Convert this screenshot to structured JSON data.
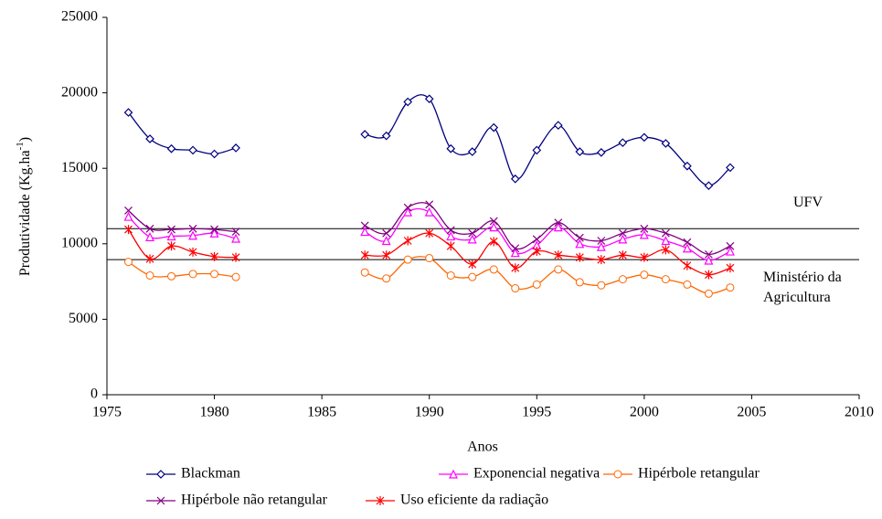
{
  "chart_data": {
    "type": "line",
    "xlabel": "Anos",
    "ylabel": {
      "text": "Produtividade (Kg.ha",
      "sup": "-1",
      "end": ")"
    },
    "x": [
      1976,
      1977,
      1978,
      1979,
      1980,
      1981,
      1982,
      1983,
      1984,
      1985,
      1986,
      1987,
      1988,
      1989,
      1990,
      1991,
      1992,
      1993,
      1994,
      1995,
      1996,
      1997,
      1998,
      1999,
      2000,
      2001,
      2002,
      2003,
      2004
    ],
    "series": [
      {
        "name": "Blackman",
        "color": "#000080",
        "marker": "diamond",
        "values": [
          18700,
          16950,
          16300,
          16200,
          15950,
          16350,
          null,
          null,
          null,
          null,
          null,
          17250,
          17150,
          19400,
          19600,
          16300,
          16100,
          17700,
          14300,
          16200,
          17850,
          16100,
          16050,
          16700,
          17050,
          16650,
          15150,
          13850,
          15050
        ]
      },
      {
        "name": "Exponencial negativa",
        "color": "#ff00ff",
        "marker": "triangle",
        "values": [
          11800,
          10450,
          10500,
          10550,
          10700,
          10350,
          null,
          null,
          null,
          null,
          null,
          10800,
          10200,
          12100,
          12100,
          10500,
          10300,
          11100,
          9400,
          9900,
          11100,
          10000,
          9800,
          10300,
          10600,
          10200,
          9700,
          8900,
          9500
        ]
      },
      {
        "name": "Hipérbole retangular",
        "color": "#ff6600",
        "marker": "circle",
        "values": [
          8800,
          7900,
          7850,
          8000,
          8000,
          7800,
          null,
          null,
          null,
          null,
          null,
          8100,
          7700,
          8950,
          9050,
          7900,
          7800,
          8300,
          7050,
          7300,
          8300,
          7450,
          7250,
          7650,
          7950,
          7650,
          7300,
          6700,
          7100
        ]
      },
      {
        "name": "Hipérbole não retangular",
        "color": "#800080",
        "marker": "x",
        "values": [
          12200,
          11000,
          10950,
          11000,
          10950,
          10800,
          null,
          null,
          null,
          null,
          null,
          11200,
          10700,
          12400,
          12600,
          10900,
          10700,
          11500,
          9700,
          10300,
          11400,
          10400,
          10200,
          10700,
          11000,
          10700,
          10100,
          9300,
          9850
        ]
      },
      {
        "name": "Uso eficiente da radiação",
        "color": "#ff0000",
        "marker": "star",
        "values": [
          10950,
          9000,
          9850,
          9450,
          9150,
          9100,
          null,
          null,
          null,
          null,
          null,
          9250,
          9250,
          10200,
          10700,
          9850,
          8650,
          10150,
          8400,
          9500,
          9250,
          9100,
          8950,
          9250,
          9100,
          9600,
          8550,
          7950,
          8400
        ]
      }
    ],
    "reference_lines": [
      {
        "label": [
          "UFV"
        ],
        "value": 11000
      },
      {
        "label": [
          "Ministério da",
          "Agricultura"
        ],
        "value": 8950
      }
    ],
    "xlim": [
      1975,
      2010
    ],
    "xticks": [
      1975,
      1980,
      1985,
      1990,
      1995,
      2000,
      2005,
      2010
    ],
    "ylim": [
      0,
      25000
    ],
    "yticks": [
      0,
      5000,
      10000,
      15000,
      20000,
      25000
    ],
    "grid": false
  }
}
